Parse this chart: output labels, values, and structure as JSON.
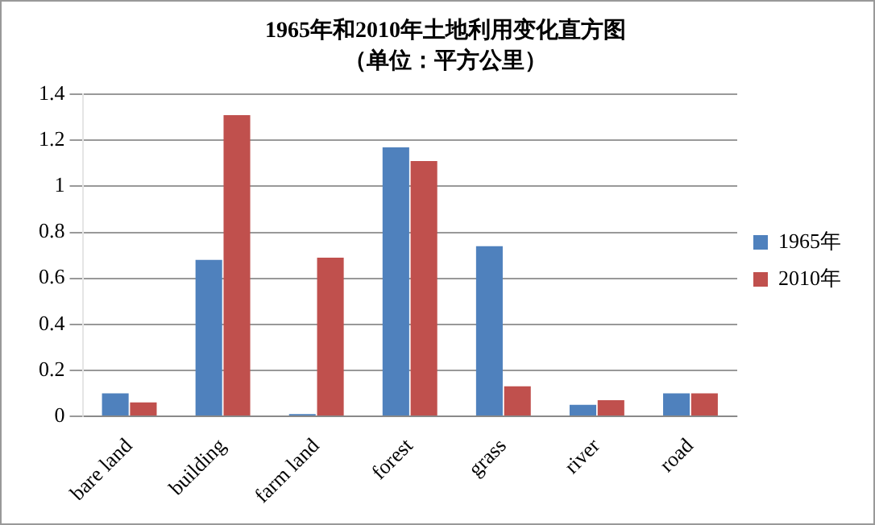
{
  "chart_data": {
    "type": "bar",
    "title": "1965年和2010年土地利用变化直方图",
    "subtitle": "（单位：平方公里）",
    "categories": [
      "bare land",
      "building",
      "farm land",
      "forest",
      "grass",
      "river",
      "road"
    ],
    "series": [
      {
        "name": "1965年",
        "color": "#4f81bd",
        "values": [
          0.1,
          0.68,
          0.01,
          1.17,
          0.74,
          0.05,
          0.1
        ]
      },
      {
        "name": "2010年",
        "color": "#c0504d",
        "values": [
          0.06,
          1.31,
          0.69,
          1.11,
          0.13,
          0.07,
          0.1
        ]
      }
    ],
    "ylim": [
      0,
      1.4
    ],
    "yticks": [
      0,
      0.2,
      0.4,
      0.6,
      0.8,
      1,
      1.2,
      1.4
    ],
    "grid": "y",
    "legend": "right"
  }
}
